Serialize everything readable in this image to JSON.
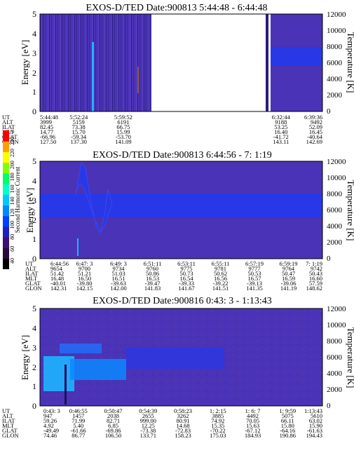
{
  "chart_data": [
    {
      "type": "heatmap",
      "title": "EXOS-D/TED   Date:900813  5:44:48 - 6:44:48",
      "ylabel": "Energy [eV]",
      "ylabel_right": "Temperature [K]",
      "ylim": [
        0,
        5
      ],
      "ylim_right": [
        0,
        12000
      ],
      "yticks": [
        "0",
        "1",
        "2",
        "3",
        "4",
        "5"
      ],
      "yticks_right": [
        "0",
        "2000",
        "4000",
        "6000",
        "8000",
        "10000",
        "12000"
      ],
      "data_gaps": [
        [
          0.448,
          0.843
        ],
        [
          0.851,
          0.857
        ]
      ],
      "table_rows": [
        "UT",
        "ALT",
        "ILAT",
        "MLT",
        "GLAT",
        "GLON"
      ],
      "table_columns": [
        {
          "x": 0.0,
          "values": [
            "5:44:48",
            "3999",
            "82.45",
            "14.77",
            "-66.96",
            "127.50"
          ]
        },
        {
          "x": 0.137,
          "values": [
            "5:52:24",
            "5159",
            "73.38",
            "15.70",
            "-59.34",
            "137.30"
          ]
        },
        {
          "x": 0.295,
          "values": [
            "5:59:52",
            "6191",
            "66.75",
            "15.99",
            "-53.70",
            "141.09"
          ]
        },
        {
          "x": 0.853,
          "values": [
            "6:32:44",
            "9188",
            "53.25",
            "16.40",
            "-41.72",
            "143.11"
          ]
        },
        {
          "x": 1.0,
          "values": [
            "6:39:36",
            "9492",
            "52.09",
            "16.45",
            "-40.64",
            "142.69"
          ]
        }
      ]
    },
    {
      "type": "heatmap",
      "title": "EXOS-D/TED   Date:900813  6:44:56 - 7: 1:19",
      "ylabel": "Energy [eV]",
      "ylabel_right": "Temperature [K]",
      "ylim": [
        0,
        5
      ],
      "ylim_right": [
        0,
        12000
      ],
      "yticks": [
        "0",
        "1",
        "2",
        "3",
        "4",
        "5"
      ],
      "yticks_right": [
        "0",
        "2000",
        "4000",
        "6000",
        "8000",
        "10000",
        "12000"
      ],
      "table_rows": [
        "UT",
        "ALT",
        "ILAT",
        "MLT",
        "GLAT",
        "GLON"
      ],
      "table_columns": [
        {
          "x": 0.0,
          "values": [
            "6:44:56",
            "9654",
            "51.42",
            "16.48",
            "-40.01",
            "142.31"
          ]
        },
        {
          "x": 0.125,
          "values": [
            "6:47: 3",
            "9700",
            "51.21",
            "16.50",
            "-39.80",
            "142.15"
          ]
        },
        {
          "x": 0.25,
          "values": [
            "6:49: 3",
            "9734",
            "51.03",
            "16.51",
            "-39.63",
            "142.00"
          ]
        },
        {
          "x": 0.375,
          "values": [
            "6:51:11",
            "9760",
            "50.86",
            "16.53",
            "-39.47",
            "141.83"
          ]
        },
        {
          "x": 0.5,
          "values": [
            "6:53:11",
            "9775",
            "50.73",
            "16.54",
            "-39.33",
            "141.67"
          ]
        },
        {
          "x": 0.625,
          "values": [
            "6:55:11",
            "9781",
            "50.62",
            "16.56",
            "-39.22",
            "141.51"
          ]
        },
        {
          "x": 0.75,
          "values": [
            "6:57:19",
            "9777",
            "50.53",
            "16.57",
            "-39.13",
            "141.35"
          ]
        },
        {
          "x": 0.875,
          "values": [
            "6:59:19",
            "9764",
            "50.47",
            "16.59",
            "-39.06",
            "141.19"
          ]
        },
        {
          "x": 1.0,
          "values": [
            "7: 1:19",
            "9742",
            "50.43",
            "16.60",
            "57.59",
            "148.62"
          ]
        }
      ]
    },
    {
      "type": "heatmap",
      "title": "EXOS-D/TED   Date:900816  0:43: 3 - 1:13:43",
      "ylabel": "Energy [eV]",
      "ylabel_right": "Temperature [K]",
      "ylim": [
        0,
        5
      ],
      "ylim_right": [
        0,
        12000
      ],
      "yticks": [
        "0",
        "1",
        "2",
        "3",
        "4",
        "5"
      ],
      "yticks_right": [
        "0",
        "2000",
        "4000",
        "6000",
        "8000",
        "10000",
        "12000"
      ],
      "table_rows": [
        "UT",
        "ALT",
        "ILAT",
        "MLT",
        "GLAT",
        "GLON"
      ],
      "table_columns": [
        {
          "x": 0.0,
          "values": [
            "0:43: 3",
            "947",
            "59.26",
            "4.92",
            "-49.49",
            "74.46"
          ]
        },
        {
          "x": 0.125,
          "values": [
            "0:46:55",
            "1457",
            "71.99",
            "5.40",
            "-61.66",
            "86.77"
          ]
        },
        {
          "x": 0.25,
          "values": [
            "0:50:47",
            "2038",
            "82.71",
            "6.85",
            "-69.86",
            "106.50"
          ]
        },
        {
          "x": 0.375,
          "values": [
            "0:54:39",
            "2655",
            "999.00",
            "12.25",
            "-73.38",
            "133.71"
          ]
        },
        {
          "x": 0.5,
          "values": [
            "0:58:23",
            "3262",
            "80.91",
            "14.68",
            "-72.83",
            "158.23"
          ]
        },
        {
          "x": 0.625,
          "values": [
            "1: 2:15",
            "3885",
            "74.92",
            "15.35",
            "-70.22",
            "175.03"
          ]
        },
        {
          "x": 0.75,
          "values": [
            "1: 6: 7",
            "4492",
            "70.05",
            "15.63",
            "-67.12",
            "184.93"
          ]
        },
        {
          "x": 0.875,
          "values": [
            "1: 9:59",
            "5075",
            "66.11",
            "15.80",
            "-64.16",
            "190.86"
          ]
        },
        {
          "x": 1.0,
          "values": [
            "1:13:43",
            "5610",
            "63.02",
            "15.90",
            "-61.63",
            "194.43"
          ]
        }
      ]
    }
  ],
  "colorbar": {
    "label": "Second Harmonic Current",
    "ticks": [
      "40",
      "60",
      "80",
      "100",
      "120",
      "140",
      "160",
      "180",
      "200",
      "220",
      "240",
      "250"
    ],
    "colors": [
      "#000000",
      "#2a0a3a",
      "#3c1070",
      "#2020c0",
      "#0040ff",
      "#0088ff",
      "#00c8ff",
      "#00ffcc",
      "#00ff60",
      "#80ff00",
      "#ffff00",
      "#ffa000",
      "#ff0000"
    ]
  },
  "colors": {
    "background_blue": "#4a33b6",
    "band_blue": "#2838e6",
    "stripe_dark": "#2a1c80",
    "low_energy_cyan": "#1eb4ff",
    "axis": "#000000"
  }
}
